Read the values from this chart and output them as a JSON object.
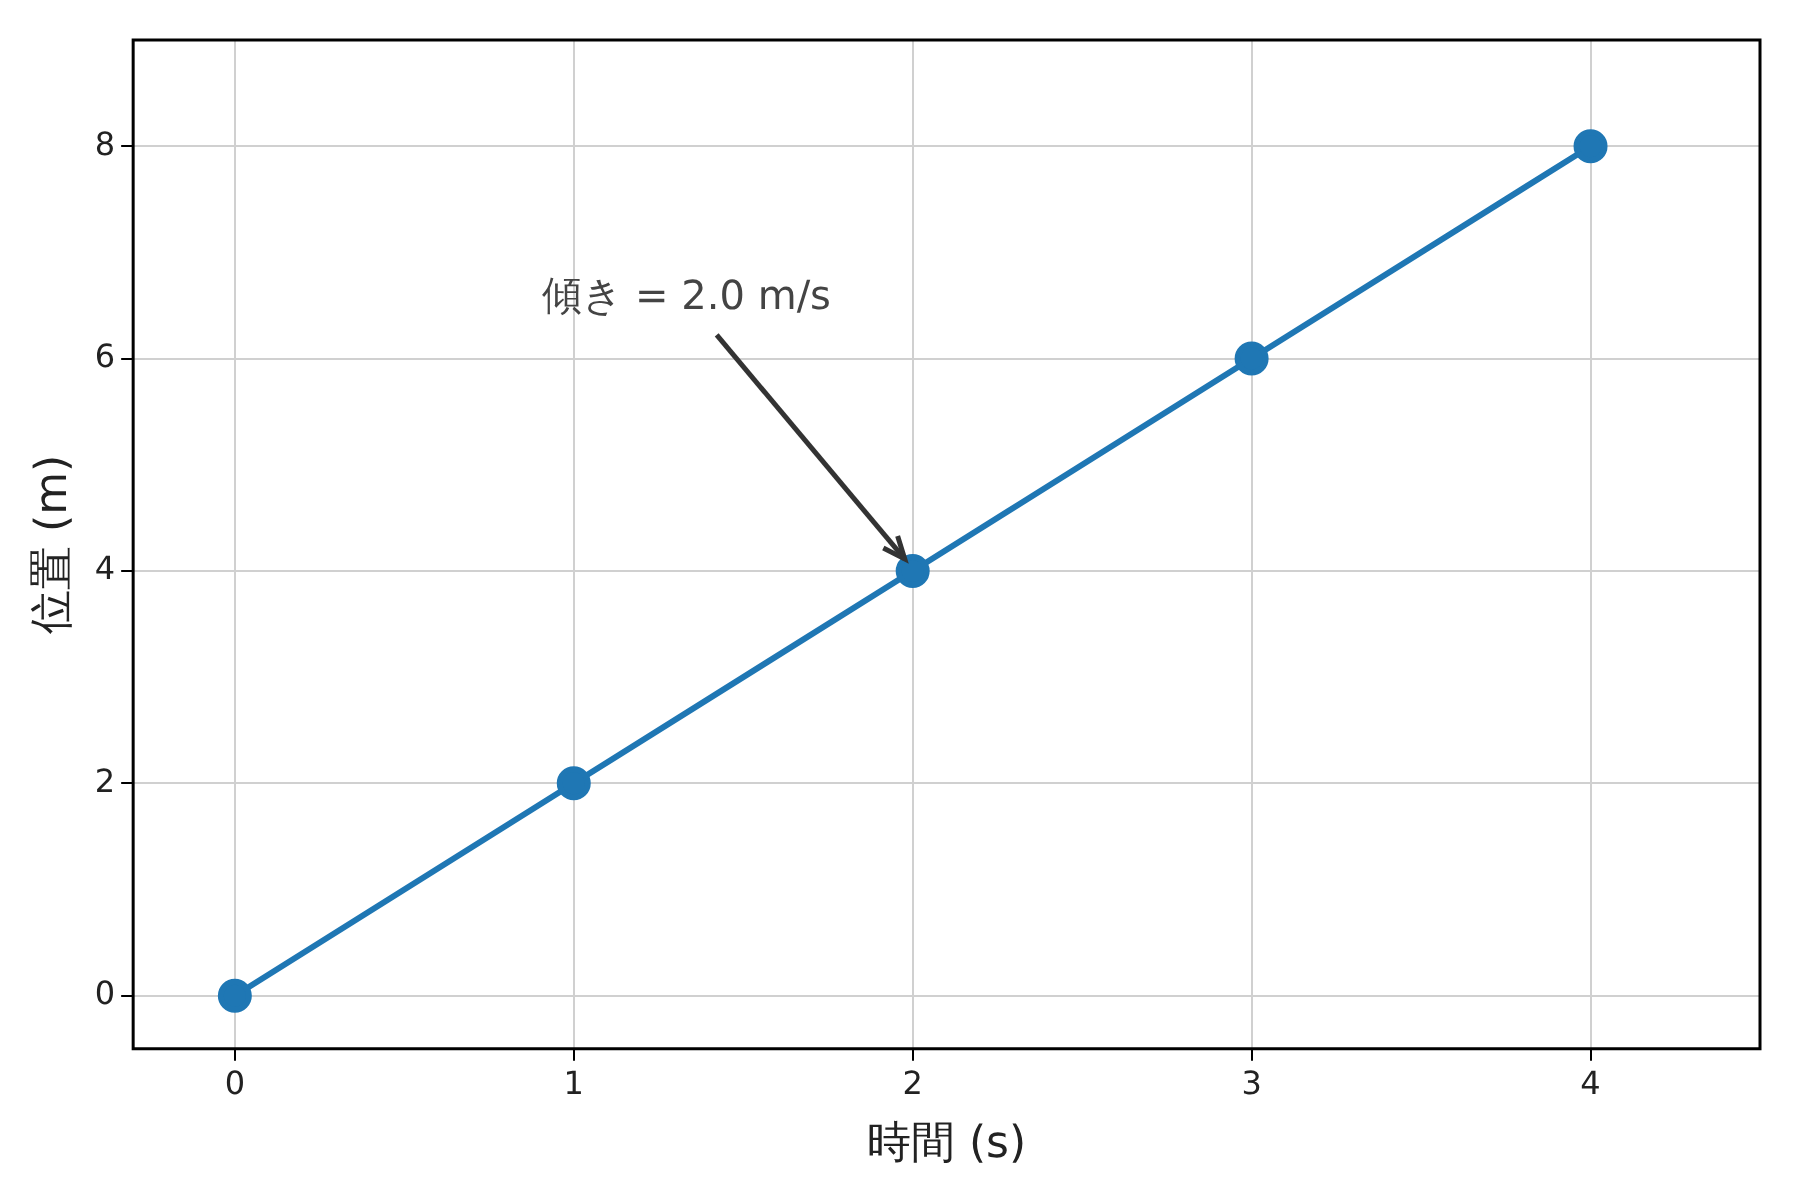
{
  "chart_data": {
    "type": "line",
    "xlabel": "時間 (s)",
    "ylabel": "位置 (m)",
    "x": [
      0,
      1,
      2,
      3,
      4
    ],
    "series": [
      {
        "color": "#1f77b4",
        "values": [
          0,
          2,
          4,
          6,
          8
        ]
      }
    ],
    "xlim": [
      -0.3,
      4.5
    ],
    "ylim": [
      -0.5,
      9
    ],
    "xticks": [
      0,
      1,
      2,
      3,
      4
    ],
    "yticks": [
      0,
      2,
      4,
      6,
      8
    ],
    "grid": true,
    "marker": "circle",
    "line_style": "solid",
    "annotations": [
      {
        "text": "傾き = 2.0 m/s",
        "x": 2,
        "y": 4
      }
    ]
  }
}
